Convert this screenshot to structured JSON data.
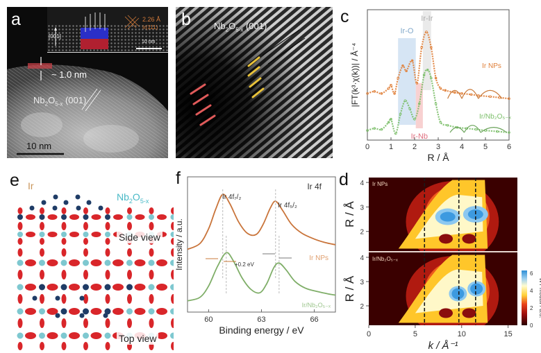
{
  "figure": {
    "panel_labels": {
      "a": "a",
      "b": "b",
      "c": "c",
      "d": "d",
      "e": "e",
      "f": "f"
    }
  },
  "panel_a": {
    "inset_direction": "[001]",
    "inset_spacing": "2.26 Å",
    "inset_plane": "Ir(111)",
    "inset_scale": "10 nm",
    "thickness_label": "~ 1.0 nm",
    "plane_label_main": "Nb",
    "plane_label_sub1": "2",
    "plane_label_mid": "O",
    "plane_label_sub2": "5-x",
    "plane_label_tail": " (001)",
    "scale_bar": "10 nm"
  },
  "panel_b": {
    "plane_label_main": "Nb",
    "plane_label_sub1": "2",
    "plane_label_mid": "O",
    "plane_label_sub2": "5-x",
    "plane_label_tail": " (001)"
  },
  "panel_e": {
    "ir_label": "Ir",
    "support_main": "Nb",
    "support_sub1": "2",
    "support_mid": "O",
    "support_sub2": "5-x",
    "side_view": "Side view",
    "top_view": "Top view"
  },
  "colors": {
    "ir_nps": "#e0803a",
    "ir_nb2o5": "#7cbf6a",
    "ir_o_band": "#cfe0f2",
    "ir_nb_band": "#f7c9c9",
    "ir_ir_band": "#e6e6e6",
    "oxygen": "#d9262a",
    "niobium": "#7ec8d0",
    "iridium": "#1f3c66"
  },
  "chart_data": [
    {
      "panel": "c",
      "type": "line",
      "title": "",
      "xlabel": "R / Å",
      "ylabel": "|FT(k³·χ(k))| / Å⁻⁴",
      "xlim": [
        0,
        6
      ],
      "xticks": [
        "0",
        "1",
        "2",
        "3",
        "4",
        "5",
        "6"
      ],
      "bands": [
        {
          "label": "Ir-O",
          "range": [
            1.3,
            2.05
          ]
        },
        {
          "label": "Ir-Nb",
          "range": [
            2.05,
            2.35
          ]
        },
        {
          "label": "Ir-Ir",
          "range": [
            2.35,
            2.7
          ]
        }
      ],
      "series": [
        {
          "name": "Ir NPs",
          "color_key": "ir_nps",
          "x": [
            0,
            0.3,
            0.6,
            0.9,
            1.0,
            1.15,
            1.3,
            1.5,
            1.65,
            1.9,
            2.1,
            2.3,
            2.5,
            2.7,
            2.9,
            3.1,
            3.3,
            3.7,
            4.0,
            4.4,
            4.7,
            5.2,
            5.6,
            6.0
          ],
          "y": [
            0.4,
            0.42,
            0.4,
            0.45,
            0.48,
            0.4,
            0.55,
            0.67,
            0.62,
            0.72,
            0.5,
            0.85,
            1.0,
            0.85,
            0.55,
            0.45,
            0.43,
            0.41,
            0.4,
            0.39,
            0.38,
            0.37,
            0.36,
            0.35
          ]
        },
        {
          "name": "Ir/Nb2O5-x",
          "color_key": "ir_nb2o5",
          "x": [
            0,
            0.3,
            0.6,
            0.9,
            1.0,
            1.2,
            1.4,
            1.6,
            1.8,
            2.0,
            2.2,
            2.4,
            2.55,
            2.7,
            2.9,
            3.1,
            3.4,
            3.8,
            4.2,
            4.6,
            5.0,
            5.5,
            6.0
          ],
          "y": [
            0.04,
            0.06,
            0.05,
            0.12,
            0.15,
            0.01,
            0.2,
            0.33,
            0.25,
            0.15,
            0.3,
            0.58,
            0.63,
            0.55,
            0.3,
            0.12,
            0.09,
            0.07,
            0.06,
            0.05,
            0.04,
            0.03,
            0.02
          ]
        }
      ],
      "legend": [
        "Ir NPs",
        "Ir/Nb2O5-x"
      ]
    },
    {
      "panel": "f",
      "type": "line",
      "title": "Ir 4f",
      "xlabel": "Binding energy / eV",
      "ylabel": "Intensity / a.u.",
      "xlim": [
        58.8,
        67.2
      ],
      "xticks": [
        "60",
        "63",
        "66"
      ],
      "annotations": [
        "Ir 4f7/2",
        "Ir 4f5/2",
        "+0.2 eV"
      ],
      "peaks": {
        "Ir NPs": [
          60.8,
          63.8
        ],
        "Ir/Nb2O5-x": [
          61.0,
          64.0
        ]
      },
      "series": [
        {
          "name": "Ir NPs",
          "color_key": "ir_nps",
          "x": [
            58.8,
            59.5,
            60.0,
            60.4,
            60.8,
            61.2,
            61.7,
            62.2,
            62.7,
            63.1,
            63.5,
            63.8,
            64.2,
            64.7,
            65.3,
            66.0,
            66.6,
            67.2
          ],
          "y": [
            0.5,
            0.55,
            0.68,
            0.85,
            0.98,
            0.9,
            0.74,
            0.64,
            0.63,
            0.72,
            0.86,
            0.92,
            0.84,
            0.72,
            0.64,
            0.59,
            0.56,
            0.54
          ]
        },
        {
          "name": "Ir/Nb2O5-x",
          "color_key": "ir_nb2o5",
          "x": [
            58.8,
            59.5,
            60.0,
            60.5,
            61.0,
            61.4,
            61.9,
            62.4,
            62.9,
            63.3,
            63.7,
            64.0,
            64.4,
            64.9,
            65.5,
            66.2,
            66.8,
            67.2
          ],
          "y": [
            0.05,
            0.08,
            0.18,
            0.35,
            0.47,
            0.4,
            0.25,
            0.15,
            0.12,
            0.2,
            0.34,
            0.38,
            0.32,
            0.22,
            0.16,
            0.13,
            0.11,
            0.1
          ]
        }
      ],
      "legend": [
        "Ir NPs",
        "Ir/Nb2O5-x"
      ]
    },
    {
      "panel": "d",
      "type": "heatmap",
      "xlabel": "k / Å⁻¹",
      "ylabel": "R / Å",
      "xlim": [
        0,
        16
      ],
      "ylim": [
        1.2,
        4.2
      ],
      "xticks": [
        "0",
        "5",
        "10",
        "15"
      ],
      "yticks": [
        "2",
        "3",
        "4"
      ],
      "dashed_lines_k": [
        6.0,
        9.7,
        11.5
      ],
      "colorbar": {
        "label": "WT moduli / a.u.",
        "range": [
          0,
          6
        ],
        "ticks": [
          "0",
          "2",
          "4",
          "6"
        ]
      },
      "subplots": [
        {
          "name": "Ir NPs",
          "maxima": [
            {
              "k": 8.5,
              "R": 2.6,
              "value": 5.2
            },
            {
              "k": 11.5,
              "R": 2.7,
              "value": 5.8
            }
          ]
        },
        {
          "name": "Ir/Nb2O5-x",
          "maxima": [
            {
              "k": 9.6,
              "R": 2.5,
              "value": 6.0
            },
            {
              "k": 11.6,
              "R": 2.7,
              "value": 5.6
            }
          ]
        }
      ]
    }
  ]
}
